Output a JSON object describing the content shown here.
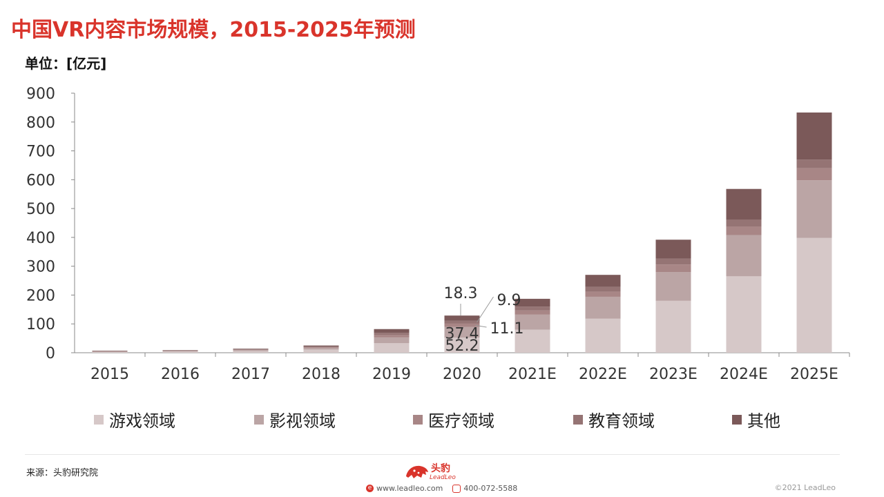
{
  "title": "中国VR内容市场规模，2015-2025年预测",
  "unit_label": "单位：[亿元]",
  "chart_data": {
    "type": "bar",
    "stacked": true,
    "categories": [
      "2015",
      "2016",
      "2017",
      "2018",
      "2019",
      "2020",
      "2021E",
      "2022E",
      "2023E",
      "2024E",
      "2025E"
    ],
    "series": [
      {
        "name": "游戏领域",
        "color": "#d6c8c8",
        "values": [
          3.5,
          4.5,
          6,
          11,
          33,
          52.2,
          80,
          118,
          180,
          265,
          398
        ]
      },
      {
        "name": "影视领域",
        "color": "#bba5a5",
        "values": [
          1.5,
          2,
          3,
          6,
          20,
          37.4,
          52,
          76,
          100,
          143,
          200
        ]
      },
      {
        "name": "医疗领域",
        "color": "#a88686",
        "values": [
          0.5,
          0.8,
          1.3,
          2.5,
          9,
          11.1,
          15,
          18,
          26,
          30,
          42
        ]
      },
      {
        "name": "教育领域",
        "color": "#957474",
        "values": [
          0.5,
          0.7,
          1.2,
          2,
          7,
          9.9,
          13,
          16,
          20,
          24,
          30
        ]
      },
      {
        "name": "其他",
        "color": "#7b5959",
        "values": [
          1,
          1,
          2.5,
          3.5,
          13,
          18.3,
          27,
          42,
          66,
          106,
          163
        ]
      }
    ],
    "annotations": [
      {
        "category": "2020",
        "series": "游戏领域",
        "label": "52.2"
      },
      {
        "category": "2020",
        "series": "影视领域",
        "label": "37.4"
      },
      {
        "category": "2020",
        "series": "医疗领域",
        "label": "11.1"
      },
      {
        "category": "2020",
        "series": "教育领域",
        "label": "9.9"
      },
      {
        "category": "2020",
        "series": "其他",
        "label": "18.3"
      }
    ],
    "ylim": [
      0,
      900
    ],
    "yticks": [
      0,
      100,
      200,
      300,
      400,
      500,
      600,
      700,
      800,
      900
    ],
    "grid": false,
    "legend_position": "bottom"
  },
  "footer": {
    "source": "来源：头豹研究院",
    "brand_name": "头豹",
    "brand_sub": "LeadLeo",
    "website": "www.leadleo.com",
    "phone": "400-072-5588",
    "copyright": "©2021 LeadLeo"
  }
}
